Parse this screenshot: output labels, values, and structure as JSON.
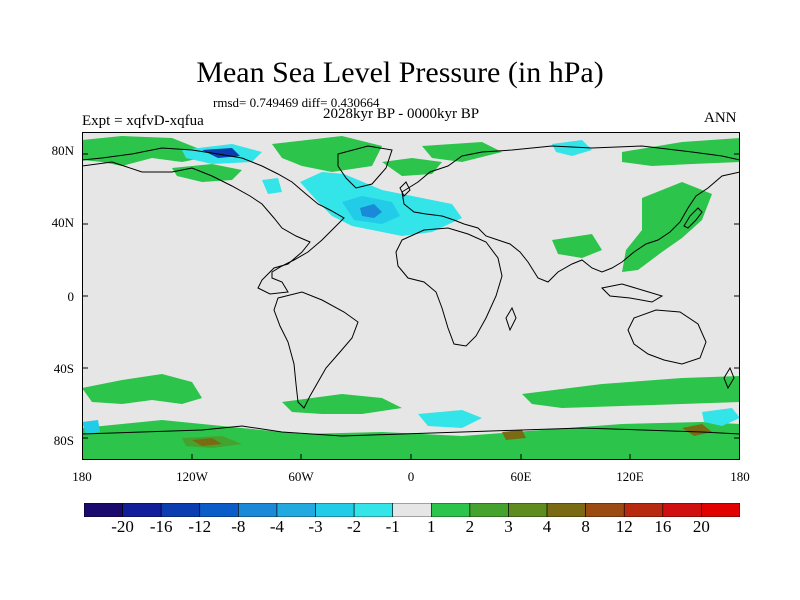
{
  "figure": {
    "title": "Mean Sea Level Pressure (in hPa)",
    "stats": "rmsd= 0.749469 diff= 0.430664",
    "experiment": "Expt = xqfvD-xqfua",
    "period": "2028kyr BP - 0000kyr BP",
    "season": "ANN"
  },
  "axes": {
    "y_ticks": [
      "80N",
      "40N",
      "0",
      "40S",
      "80S"
    ],
    "x_ticks": [
      "180",
      "120W",
      "60W",
      "0",
      "60E",
      "120E",
      "180"
    ]
  },
  "colorbar": {
    "labels": [
      "-20",
      "-16",
      "-12",
      "-8",
      "-4",
      "-3",
      "-2",
      "-1",
      "1",
      "2",
      "3",
      "4",
      "8",
      "12",
      "16",
      "20"
    ],
    "colors": [
      "#1a0a6e",
      "#101e9a",
      "#0b3cb0",
      "#0a5cc8",
      "#1a8ad8",
      "#22aae0",
      "#22cce8",
      "#33e4e8",
      "#e6e6e6",
      "#2cc44a",
      "#46a22e",
      "#5e8c1e",
      "#7a6a14",
      "#9a4a12",
      "#b82a10",
      "#d01010",
      "#e00000"
    ]
  },
  "map_colors": {
    "background": "#e6e6e6",
    "positive_1": "#2cc44a",
    "positive_2": "#46a22e",
    "positive_4": "#7a6a14",
    "negative_1": "#33e4e8",
    "negative_2": "#22cce8",
    "negative_3": "#22aae0",
    "negative_4": "#1a8ad8",
    "negative_8": "#0b3cb0",
    "coastline": "#000000"
  }
}
